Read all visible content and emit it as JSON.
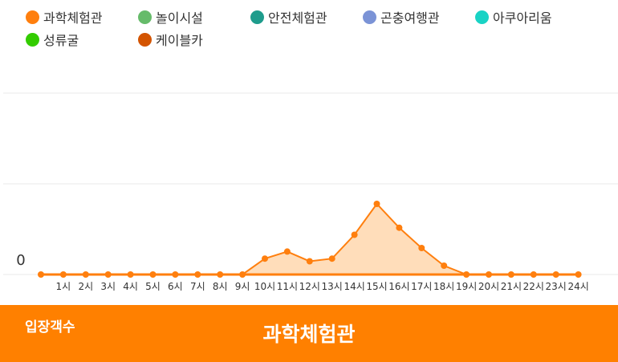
{
  "legend": [
    {
      "label": "과학체험관",
      "color": "#ff7f0e"
    },
    {
      "label": "놀이시설",
      "color": "#66bb6a"
    },
    {
      "label": "안전체험관",
      "color": "#1e9c8c"
    },
    {
      "label": "곤충여행관",
      "color": "#7b93d6"
    },
    {
      "label": "아쿠아리움",
      "color": "#19d3c5"
    },
    {
      "label": "성류굴",
      "color": "#33cc00"
    },
    {
      "label": "케이블카",
      "color": "#d35400"
    }
  ],
  "footer": {
    "label": "입장객수",
    "title": "과학체험관"
  },
  "chart_data": {
    "type": "area",
    "x": [
      "",
      "1시",
      "2시",
      "3시",
      "4시",
      "5시",
      "6시",
      "7시",
      "8시",
      "9시",
      "10시",
      "11시",
      "12시",
      "13시",
      "14시",
      "15시",
      "16시",
      "17시",
      "18시",
      "19시",
      "20시",
      "21시",
      "22시",
      "23시",
      "24시"
    ],
    "series": [
      {
        "name": "과학체험관",
        "color": "#ff7f0e",
        "values": [
          0,
          0,
          0,
          0,
          0,
          0,
          0,
          0,
          0,
          0,
          18,
          26,
          15,
          18,
          45,
          80,
          53,
          30,
          10,
          0,
          0,
          0,
          0,
          0,
          0
        ]
      }
    ],
    "yticks": [
      0
    ],
    "ylim": [
      0,
      200
    ],
    "grid": true
  }
}
